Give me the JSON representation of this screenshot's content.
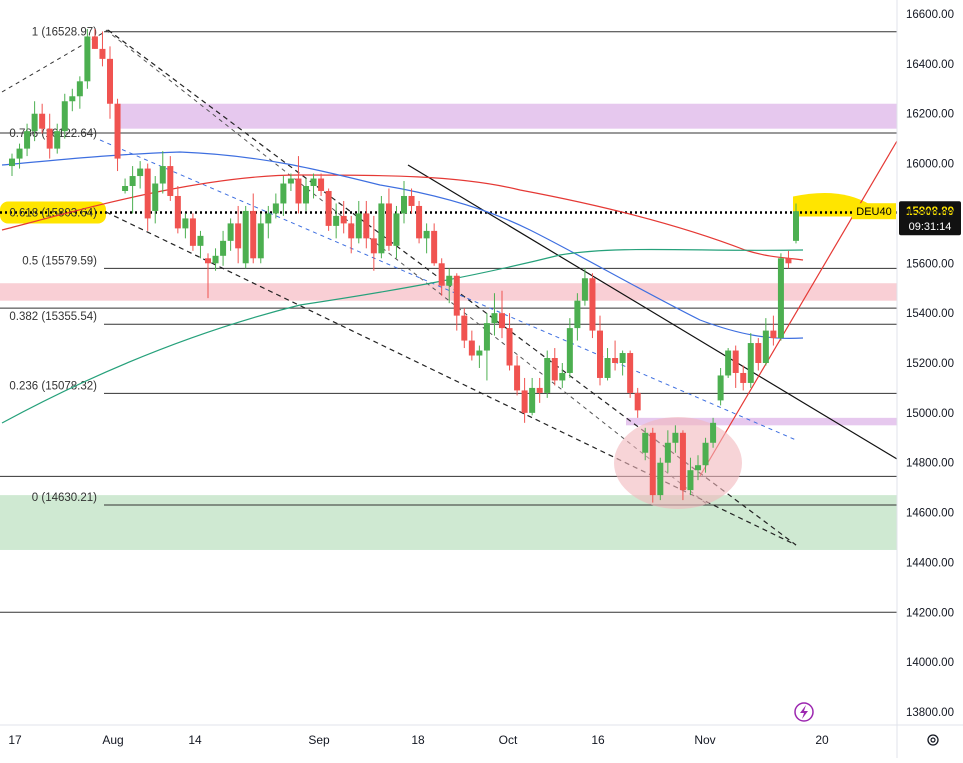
{
  "symbol": {
    "name": "DEU40",
    "last_price": "15808.89",
    "countdown": "09:31:14"
  },
  "colors": {
    "up": "#4caf50",
    "down": "#f05350",
    "ma_blue": "#3e6fe0",
    "ma_red": "#e53935",
    "ma_green": "#26a17b",
    "fib_line": "#333333",
    "zone_purple": "#e6c8ee",
    "zone_pink": "#f9cfd5",
    "zone_green": "#cfe9d2",
    "highlight_yellow": "#ffe500",
    "circle_fill": "#f2b8bd",
    "price_tag_bg": "#111111"
  },
  "icons": {
    "flash": "lightning-bolt-icon",
    "settings": "gear-icon"
  },
  "chart_data": {
    "type": "candlestick",
    "y_axis": {
      "min": 13760,
      "max": 16700,
      "ticks": [
        "16600.00",
        "16400.00",
        "16200.00",
        "16000.00",
        "15800.00",
        "15600.00",
        "15400.00",
        "15200.00",
        "15000.00",
        "14800.00",
        "14600.00",
        "14400.00",
        "14200.00",
        "14000.00",
        "13800.00"
      ]
    },
    "x_axis": {
      "ticks": [
        "17",
        "Aug",
        "14",
        "Sep",
        "18",
        "Oct",
        "16",
        "Nov",
        "20"
      ]
    },
    "fibonacci": [
      {
        "label": "1 (16528.97)",
        "price": 16528.97
      },
      {
        "label": "0.786 (16122.64)",
        "price": 16122.64
      },
      {
        "label": "0.618 (15803.64)",
        "price": 15803.64
      },
      {
        "label": "0.5 (15579.59)",
        "price": 15579.59
      },
      {
        "label": "0.382 (15355.54)",
        "price": 15355.54
      },
      {
        "label": "0.236 (15078.32)",
        "price": 15078.32
      },
      {
        "label": "0 (14630.21)",
        "price": 14630.21
      }
    ],
    "extra_levels": [
      15420,
      14745,
      14200
    ],
    "zones": [
      {
        "name": "purple-zone-upper",
        "from": 16140,
        "to": 16240
      },
      {
        "name": "pink-zone",
        "from": 15450,
        "to": 15520
      },
      {
        "name": "green-zone",
        "from": 14450,
        "to": 14670
      },
      {
        "name": "purple-zone-lower",
        "from": 14950,
        "to": 14980
      }
    ],
    "candles": [
      [
        15990,
        16040,
        15950,
        16020
      ],
      [
        16020,
        16080,
        15980,
        16060
      ],
      [
        16060,
        16160,
        16030,
        16130
      ],
      [
        16130,
        16250,
        16090,
        16200
      ],
      [
        16200,
        16240,
        16120,
        16140
      ],
      [
        16140,
        16200,
        16020,
        16060
      ],
      [
        16060,
        16160,
        16040,
        16130
      ],
      [
        16130,
        16280,
        16100,
        16250
      ],
      [
        16250,
        16300,
        16210,
        16270
      ],
      [
        16270,
        16350,
        16220,
        16330
      ],
      [
        16330,
        16540,
        16300,
        16510
      ],
      [
        16510,
        16540,
        16460,
        16460
      ],
      [
        16460,
        16530,
        16390,
        16420
      ],
      [
        16420,
        16470,
        16180,
        16240
      ],
      [
        16240,
        16260,
        15970,
        16020
      ],
      [
        15890,
        15940,
        15880,
        15910
      ],
      [
        15910,
        15990,
        15800,
        15950
      ],
      [
        15950,
        16010,
        15900,
        15980
      ],
      [
        15980,
        16000,
        15730,
        15780
      ],
      [
        15810,
        15950,
        15760,
        15920
      ],
      [
        15920,
        16050,
        15880,
        15990
      ],
      [
        15990,
        16030,
        15850,
        15870
      ],
      [
        15870,
        15910,
        15720,
        15740
      ],
      [
        15740,
        15800,
        15700,
        15780
      ],
      [
        15780,
        15800,
        15650,
        15670
      ],
      [
        15670,
        15730,
        15620,
        15710
      ],
      [
        15620,
        15640,
        15460,
        15600
      ],
      [
        15600,
        15660,
        15570,
        15630
      ],
      [
        15630,
        15730,
        15590,
        15690
      ],
      [
        15690,
        15780,
        15650,
        15760
      ],
      [
        15760,
        15830,
        15600,
        15660
      ],
      [
        15600,
        15830,
        15580,
        15810
      ],
      [
        15810,
        15880,
        15600,
        15620
      ],
      [
        15620,
        15800,
        15600,
        15760
      ],
      [
        15760,
        15830,
        15700,
        15800
      ],
      [
        15800,
        15880,
        15780,
        15840
      ],
      [
        15840,
        15950,
        15790,
        15920
      ],
      [
        15920,
        15960,
        15890,
        15940
      ],
      [
        15940,
        16030,
        15800,
        15840
      ],
      [
        15840,
        15940,
        15810,
        15910
      ],
      [
        15910,
        15960,
        15860,
        15940
      ],
      [
        15940,
        15960,
        15870,
        15890
      ],
      [
        15890,
        15900,
        15730,
        15750
      ],
      [
        15750,
        15840,
        15700,
        15790
      ],
      [
        15790,
        15850,
        15720,
        15760
      ],
      [
        15760,
        15790,
        15640,
        15700
      ],
      [
        15700,
        15850,
        15680,
        15800
      ],
      [
        15800,
        15850,
        15660,
        15700
      ],
      [
        15700,
        15790,
        15570,
        15640
      ],
      [
        15640,
        15870,
        15620,
        15840
      ],
      [
        15840,
        15900,
        15650,
        15670
      ],
      [
        15670,
        15830,
        15620,
        15800
      ],
      [
        15800,
        15930,
        15760,
        15870
      ],
      [
        15870,
        15900,
        15800,
        15830
      ],
      [
        15830,
        15850,
        15680,
        15700
      ],
      [
        15700,
        15760,
        15640,
        15730
      ],
      [
        15730,
        15760,
        15590,
        15600
      ],
      [
        15600,
        15620,
        15470,
        15510
      ],
      [
        15510,
        15580,
        15440,
        15550
      ],
      [
        15550,
        15560,
        15330,
        15390
      ],
      [
        15390,
        15420,
        15260,
        15290
      ],
      [
        15290,
        15330,
        15210,
        15230
      ],
      [
        15230,
        15270,
        15180,
        15250
      ],
      [
        15250,
        15400,
        15130,
        15360
      ],
      [
        15360,
        15480,
        15310,
        15400
      ],
      [
        15400,
        15490,
        15300,
        15340
      ],
      [
        15340,
        15400,
        15170,
        15190
      ],
      [
        15190,
        15230,
        15070,
        15090
      ],
      [
        15090,
        15140,
        14960,
        15000
      ],
      [
        15000,
        15140,
        14990,
        15100
      ],
      [
        15100,
        15140,
        15040,
        15080
      ],
      [
        15080,
        15250,
        15060,
        15220
      ],
      [
        15220,
        15260,
        15110,
        15130
      ],
      [
        15130,
        15200,
        15100,
        15160
      ],
      [
        15160,
        15380,
        15140,
        15340
      ],
      [
        15340,
        15480,
        15290,
        15450
      ],
      [
        15450,
        15580,
        15430,
        15540
      ],
      [
        15540,
        15560,
        15300,
        15330
      ],
      [
        15330,
        15390,
        15110,
        15140
      ],
      [
        15140,
        15260,
        15130,
        15220
      ],
      [
        15220,
        15290,
        15170,
        15200
      ],
      [
        15200,
        15250,
        15150,
        15240
      ],
      [
        15240,
        15250,
        15060,
        15080
      ],
      [
        15080,
        15100,
        14980,
        15010
      ],
      [
        14840,
        14940,
        14810,
        14920
      ],
      [
        14920,
        14940,
        14640,
        14670
      ],
      [
        14670,
        14820,
        14650,
        14800
      ],
      [
        14800,
        14930,
        14760,
        14880
      ],
      [
        14880,
        14950,
        14840,
        14920
      ],
      [
        14920,
        14930,
        14650,
        14690
      ],
      [
        14690,
        14820,
        14670,
        14770
      ],
      [
        14770,
        14830,
        14730,
        14790
      ],
      [
        14790,
        14900,
        14760,
        14880
      ],
      [
        14880,
        14980,
        14860,
        14960
      ],
      [
        15050,
        15180,
        15030,
        15150
      ],
      [
        15150,
        15260,
        15140,
        15250
      ],
      [
        15250,
        15270,
        15100,
        15160
      ],
      [
        15160,
        15190,
        15090,
        15120
      ],
      [
        15120,
        15320,
        15100,
        15280
      ],
      [
        15280,
        15300,
        15170,
        15200
      ],
      [
        15200,
        15380,
        15190,
        15330
      ],
      [
        15330,
        15390,
        15270,
        15300
      ],
      [
        15300,
        15640,
        15290,
        15620
      ],
      [
        15620,
        15650,
        15580,
        15600
      ],
      [
        15690,
        15840,
        15680,
        15809
      ]
    ]
  }
}
